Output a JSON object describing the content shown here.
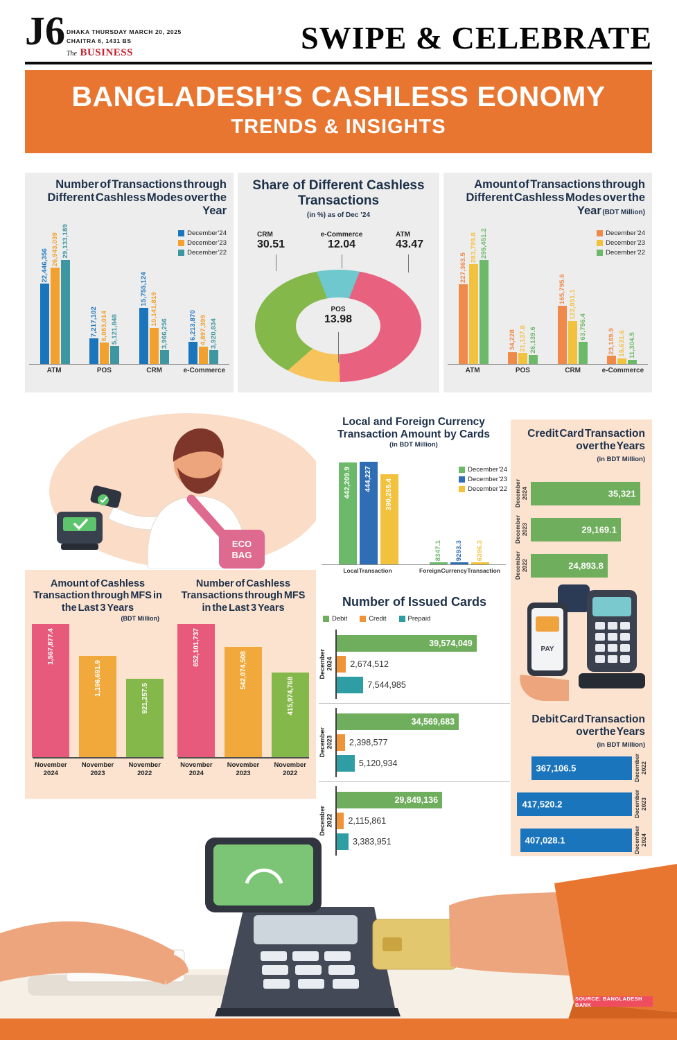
{
  "header": {
    "logo": "J6",
    "dateline_line1": "DHAKA THURSDAY MARCH 20, 2025",
    "dateline_line2": "CHAITRA 6, 1431 BS",
    "brand_prefix": "The",
    "brand": "BUSINESS",
    "masthead": "SWIPE & CELEBRATE"
  },
  "banner": {
    "title": "BANGLADESH’S CASHLESS EONOMY",
    "subtitle": "TRENDS & INSIGHTS"
  },
  "source_badge": "SOURCE: BANGLADESH BANK",
  "illustration_text": {
    "eco_line1": "ECO",
    "eco_line2": "BAG",
    "pay": "PAY"
  },
  "chart_data": [
    {
      "id": "count_by_mode",
      "type": "bar",
      "title": "Number of Transactions through Different Cashless Modes over the Year",
      "categories": [
        "ATM",
        "POS",
        "CRM",
        "e-Commerce"
      ],
      "legend_position": "top-right",
      "grid": false,
      "series": [
        {
          "name": "December’24",
          "color": "#1b75bc",
          "values": [
            22446356,
            7217102,
            15755124,
            6213870
          ],
          "labels": [
            "22,446,356",
            "7,217,102",
            "15,755,124",
            "6,213,870"
          ]
        },
        {
          "name": "December’23",
          "color": "#f2a12e",
          "values": [
            26943039,
            6083014,
            10141819,
            4897399
          ],
          "labels": [
            "26,943,039",
            "6,083,014",
            "10,141,819",
            "4,897,399"
          ]
        },
        {
          "name": "December’22",
          "color": "#3e96a0",
          "values": [
            29133189,
            5121848,
            3966256,
            3920834
          ],
          "labels": [
            "29,133,189",
            "5,121,848",
            "3,966,256",
            "3,920,834"
          ]
        }
      ]
    },
    {
      "id": "share_donut",
      "type": "pie",
      "title": "Share of Different Cashless Transactions",
      "subtitle": "(in %) as of Dec ’24",
      "slices": [
        {
          "label": "e-Commerce",
          "value": 12.04,
          "text": "12.04",
          "color": "#6fc8ce"
        },
        {
          "label": "ATM",
          "value": 43.47,
          "text": "43.47",
          "color": "#e8617f"
        },
        {
          "label": "POS",
          "value": 13.98,
          "text": "13.98",
          "color": "#f6c35c"
        },
        {
          "label": "CRM",
          "value": 30.51,
          "text": "30.51",
          "color": "#85b84a"
        }
      ]
    },
    {
      "id": "amount_by_mode",
      "type": "bar",
      "title": "Amount of Transactions through Different Cashless Modes over the Year",
      "subtitle": "(BDT Million)",
      "categories": [
        "ATM",
        "POS",
        "CRM",
        "e-Commerce"
      ],
      "series": [
        {
          "name": "December’24",
          "color": "#ef8a4a",
          "values": [
            227363.5,
            34228,
            165795.6,
            23169.9
          ],
          "labels": [
            "227,363.5",
            "34,228",
            "165,795.6",
            "23,169.9"
          ]
        },
        {
          "name": "December’23",
          "color": "#f2c13d",
          "values": [
            283799.8,
            31137.8,
            122951.1,
            15631.6
          ],
          "labels": [
            "283,799.8",
            "31,137.8",
            "122,951.1",
            "15,631.6"
          ]
        },
        {
          "name": "December’22",
          "color": "#6cb969",
          "values": [
            295451.2,
            26139.6,
            63756.4,
            11304.5
          ],
          "labels": [
            "295,451.2",
            "26,139.6",
            "63,756.4",
            "11,304.5"
          ]
        }
      ]
    },
    {
      "id": "card_currency",
      "type": "bar",
      "title": "Local and Foreign Currency Transaction Amount by Cards",
      "subtitle": "(in BDT Million)",
      "categories": [
        "Local Transaction",
        "Foreign Currency Transaction"
      ],
      "series": [
        {
          "name": "December’24",
          "color": "#6cb969",
          "values": [
            442209.9,
            8347.1
          ],
          "labels": [
            "442,209.9",
            "8347.1"
          ]
        },
        {
          "name": "December’23",
          "color": "#2f6eb5",
          "values": [
            444227,
            9293.3
          ],
          "labels": [
            "444,227",
            "9293.3"
          ]
        },
        {
          "name": "December’22",
          "color": "#f2c13d",
          "values": [
            390255.4,
            6396.3
          ],
          "labels": [
            "390,255.4",
            "6396.3"
          ]
        }
      ]
    },
    {
      "id": "credit_card",
      "type": "bar",
      "title": "Credit Card Transaction over the Years",
      "subtitle": "(in BDT Million)",
      "color": "#6fae5c",
      "rows": [
        {
          "label_line1": "December",
          "label_line2": "2024",
          "value": 35321,
          "text": "35,321"
        },
        {
          "label_line1": "December",
          "label_line2": "2023",
          "value": 29169.1,
          "text": "29,169.1"
        },
        {
          "label_line1": "December",
          "label_line2": "2022",
          "value": 24893.8,
          "text": "24,893.8"
        }
      ]
    },
    {
      "id": "mfs_amount",
      "type": "bar",
      "title": "Amount of Cashless Transaction through MFS in the Last 3 Years",
      "subtitle": "(BDT Million)",
      "bars": [
        {
          "label_line1": "November",
          "label_line2": "2024",
          "color": "#e85a7b",
          "value": 1567877.4,
          "text": "1,567,877.4"
        },
        {
          "label_line1": "November",
          "label_line2": "2023",
          "color": "#f2a93b",
          "value": 1196691.9,
          "text": "1,196,691.9"
        },
        {
          "label_line1": "November",
          "label_line2": "2022",
          "color": "#85b84a",
          "value": 921257.5,
          "text": "921,257.5"
        }
      ]
    },
    {
      "id": "mfs_count",
      "type": "bar",
      "title": "Number of Cashless Transactions through MFS in the Last 3 Years",
      "bars": [
        {
          "label_line1": "November",
          "label_line2": "2024",
          "color": "#e85a7b",
          "value": 652101737,
          "text": "652,101,737"
        },
        {
          "label_line1": "November",
          "label_line2": "2023",
          "color": "#f2a93b",
          "value": 542074508,
          "text": "542,074,508"
        },
        {
          "label_line1": "November",
          "label_line2": "2022",
          "color": "#85b84a",
          "value": 415974768,
          "text": "415,974,768"
        }
      ]
    },
    {
      "id": "issued_cards",
      "type": "bar",
      "title": "Number of Issued Cards",
      "legend": [
        {
          "name": "Debit",
          "color": "#6fae5c"
        },
        {
          "name": "Credit",
          "color": "#f0943a"
        },
        {
          "name": "Prepaid",
          "color": "#2e9ea4"
        }
      ],
      "groups": [
        {
          "label_line1": "December",
          "label_line2": "2024",
          "values": [
            39574049,
            2674512,
            7544985
          ],
          "texts": [
            "39,574,049",
            "2,674,512",
            "7,544,985"
          ]
        },
        {
          "label_line1": "December",
          "label_line2": "2023",
          "values": [
            34569683,
            2398577,
            5120934
          ],
          "texts": [
            "34,569,683",
            "2,398,577",
            "5,120,934"
          ]
        },
        {
          "label_line1": "December",
          "label_line2": "2022",
          "values": [
            29849136,
            2115861,
            3383951
          ],
          "texts": [
            "29,849,136",
            "2,115,861",
            "3,383,951"
          ]
        }
      ]
    },
    {
      "id": "debit_card",
      "type": "bar",
      "title": "Debit Card Transaction over the Years",
      "subtitle": "(in BDT Million)",
      "color": "#1b75bc",
      "rows": [
        {
          "label_line1": "December",
          "label_line2": "2022",
          "value": 367106.5,
          "text": "367,106.5"
        },
        {
          "label_line1": "December",
          "label_line2": "2023",
          "value": 417520.2,
          "text": "417,520.2"
        },
        {
          "label_line1": "December",
          "label_line2": "2024",
          "value": 407028.1,
          "text": "407,028.1"
        }
      ]
    }
  ]
}
